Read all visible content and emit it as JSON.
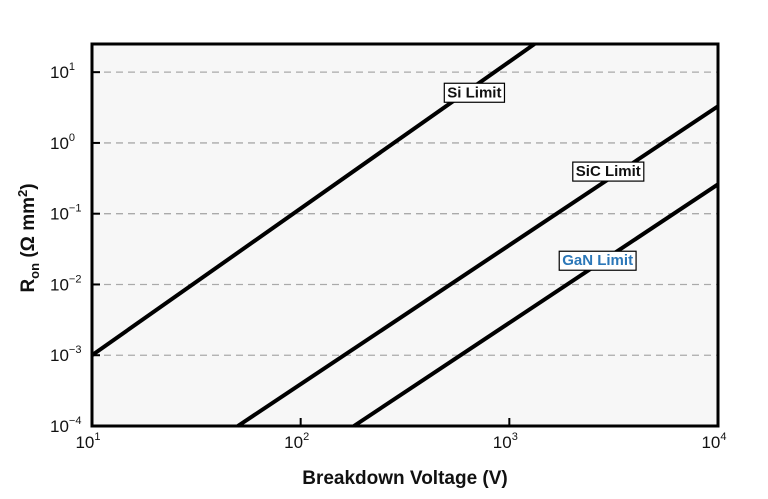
{
  "chart_data": {
    "type": "line",
    "xscale": "log",
    "yscale": "log",
    "xlim": [
      10,
      10000
    ],
    "ylim": [
      0.0001,
      25
    ],
    "grid": "horizontal dashed",
    "xlabel": "Breakdown Voltage (V)",
    "ylabel": {
      "main": "R",
      "sub": "on",
      "rest": " (Ω mm",
      "sup": "2",
      "close": ")"
    },
    "xticks": [
      {
        "base": "10",
        "exp": "1",
        "value": 10
      },
      {
        "base": "10",
        "exp": "2",
        "value": 100
      },
      {
        "base": "10",
        "exp": "3",
        "value": 1000
      },
      {
        "base": "10",
        "exp": "4",
        "value": 10000
      }
    ],
    "yticks": [
      {
        "base": "10",
        "exp": "−4",
        "value": 0.0001
      },
      {
        "base": "10",
        "exp": "−3",
        "value": 0.001
      },
      {
        "base": "10",
        "exp": "−2",
        "value": 0.01
      },
      {
        "base": "10",
        "exp": "−1",
        "value": 0.1
      },
      {
        "base": "10",
        "exp": "0",
        "value": 1
      },
      {
        "base": "10",
        "exp": "1",
        "value": 10
      }
    ],
    "series": [
      {
        "name": "Si Limit",
        "x": [
          10,
          1320
        ],
        "y": [
          0.001,
          25
        ],
        "label_at": {
          "x": 680,
          "y": 5.2
        },
        "label_color": "#111111"
      },
      {
        "name": "SiC Limit",
        "x": [
          50,
          10000
        ],
        "y": [
          0.0001,
          3.3
        ],
        "label_at": {
          "x": 2980,
          "y": 0.4
        },
        "label_color": "#111111"
      },
      {
        "name": "GaN Limit",
        "x": [
          180,
          10000
        ],
        "y": [
          0.0001,
          0.26
        ],
        "label_at": {
          "x": 2650,
          "y": 0.022
        },
        "label_color": "#2b77b8"
      }
    ],
    "colors": {
      "line": "#000000",
      "plot_bg": "#f7f7f7",
      "grid": "#aaaaaa"
    }
  }
}
